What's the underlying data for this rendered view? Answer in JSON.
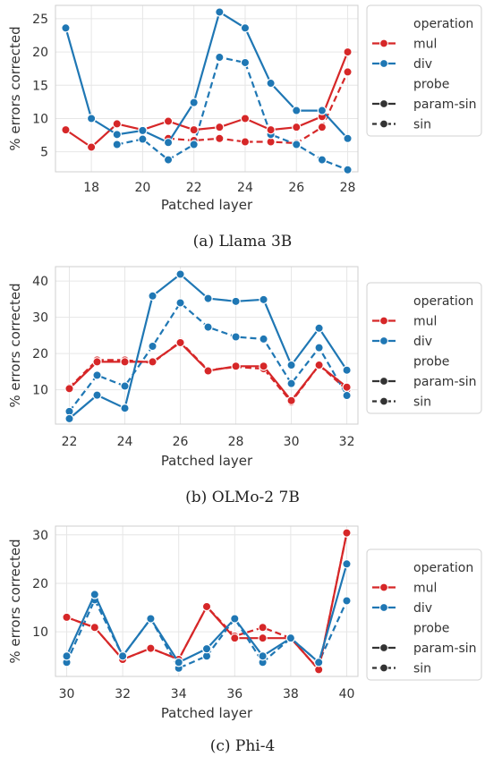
{
  "colors": {
    "mul": "#d62728",
    "div": "#1f77b4",
    "grid": "#e6e6e6",
    "frame": "#cfcfcf",
    "text": "#333333"
  },
  "legend": {
    "header_operation": "operation",
    "op_mul": "mul",
    "op_div": "div",
    "header_probe": "probe",
    "probe_param_sin": "param-sin",
    "probe_sin": "sin"
  },
  "chart_data": [
    {
      "type": "line",
      "caption": "(a) Llama 3B",
      "xlabel": "Patched layer",
      "ylabel": "% errors corrected",
      "xlim": [
        16.6,
        28.4
      ],
      "ylim": [
        2.0,
        27.0
      ],
      "xticks": [
        18,
        20,
        22,
        24,
        26,
        28
      ],
      "yticks": [
        5,
        10,
        15,
        20,
        25
      ],
      "grid": true,
      "legend_position": "outside-right",
      "series": [
        {
          "name": "mul",
          "probe": "param-sin",
          "x": [
            17,
            18,
            19,
            20,
            21,
            22,
            23,
            24,
            25,
            26,
            27,
            28
          ],
          "values": [
            8.3,
            5.7,
            9.2,
            8.3,
            9.6,
            8.3,
            8.7,
            10.0,
            8.3,
            8.7,
            10.3,
            20.0
          ]
        },
        {
          "name": "mul",
          "probe": "sin",
          "x": [
            21,
            22,
            23,
            24,
            25,
            26,
            27,
            28
          ],
          "values": [
            7.0,
            6.7,
            7.0,
            6.5,
            6.5,
            6.3,
            8.7,
            17.0
          ]
        },
        {
          "name": "div",
          "probe": "param-sin",
          "x": [
            17,
            18,
            19,
            20,
            21,
            22,
            23,
            24,
            25,
            26,
            27,
            28
          ],
          "values": [
            23.6,
            10.0,
            7.6,
            8.2,
            6.4,
            12.4,
            26.0,
            23.6,
            15.3,
            11.2,
            11.2,
            7.0
          ]
        },
        {
          "name": "div",
          "probe": "sin",
          "x": [
            19,
            20,
            21,
            22,
            23,
            24,
            25,
            26,
            27,
            28
          ],
          "values": [
            6.1,
            6.9,
            3.8,
            6.1,
            19.2,
            18.4,
            7.6,
            6.1,
            3.8,
            2.3
          ]
        }
      ]
    },
    {
      "type": "line",
      "caption": "(b) OLMo-2 7B",
      "xlabel": "Patched layer",
      "ylabel": "% errors corrected",
      "xlim": [
        21.5,
        32.4
      ],
      "ylim": [
        0.5,
        44.0
      ],
      "xticks": [
        22,
        24,
        26,
        28,
        30,
        32
      ],
      "yticks": [
        10,
        20,
        30,
        40
      ],
      "grid": true,
      "legend_position": "outside-right",
      "series": [
        {
          "name": "mul",
          "probe": "param-sin",
          "x": [
            22,
            23,
            24,
            25,
            26,
            27,
            28,
            29,
            30,
            31,
            32
          ],
          "values": [
            10.3,
            17.7,
            17.7,
            17.7,
            23.0,
            15.2,
            16.5,
            16.5,
            7.0,
            16.8,
            10.7
          ]
        },
        {
          "name": "mul",
          "probe": "sin",
          "x": [
            22,
            23,
            24,
            25,
            26,
            27,
            28,
            29,
            30,
            31,
            32
          ],
          "values": [
            10.6,
            18.2,
            18.2,
            17.4,
            23.3,
            15.4,
            16.3,
            15.8,
            6.6,
            16.8,
            10.0
          ]
        },
        {
          "name": "div",
          "probe": "param-sin",
          "x": [
            22,
            23,
            24,
            25,
            26,
            27,
            28,
            29,
            30,
            31,
            32
          ],
          "values": [
            2.0,
            8.5,
            4.9,
            35.9,
            41.9,
            35.2,
            34.4,
            34.9,
            16.8,
            27.0,
            15.4
          ]
        },
        {
          "name": "div",
          "probe": "sin",
          "x": [
            22,
            23,
            24,
            25,
            26,
            27,
            28,
            29,
            30,
            31,
            32
          ],
          "values": [
            4.0,
            14.0,
            11.0,
            22.0,
            34.0,
            27.3,
            24.6,
            24.0,
            11.7,
            21.6,
            8.4
          ]
        }
      ]
    },
    {
      "type": "line",
      "caption": "(c) Phi-4",
      "xlabel": "Patched layer",
      "ylabel": "% errors corrected",
      "xlim": [
        29.6,
        40.4
      ],
      "ylim": [
        0.8,
        31.8
      ],
      "xticks": [
        30,
        32,
        34,
        36,
        38,
        40
      ],
      "yticks": [
        10,
        20,
        30
      ],
      "grid": true,
      "legend_position": "outside-right",
      "series": [
        {
          "name": "mul",
          "probe": "param-sin",
          "x": [
            30,
            31,
            32,
            33,
            34,
            35,
            36,
            37,
            38,
            39,
            40
          ],
          "values": [
            13.0,
            10.9,
            4.3,
            6.6,
            4.3,
            15.2,
            8.7,
            8.7,
            8.7,
            2.2,
            30.4
          ]
        },
        {
          "name": "mul",
          "probe": "sin",
          "x": [
            30,
            31,
            32,
            33,
            34,
            35,
            36,
            37,
            38,
            39,
            40
          ],
          "values": [
            13.0,
            10.9,
            4.3,
            6.6,
            4.3,
            15.2,
            9.1,
            10.9,
            8.7,
            2.2,
            30.4
          ]
        },
        {
          "name": "div",
          "probe": "param-sin",
          "x": [
            30,
            31,
            32,
            33,
            34,
            35,
            36,
            37,
            38,
            39,
            40
          ],
          "values": [
            5.0,
            17.7,
            5.0,
            12.7,
            3.7,
            6.5,
            12.7,
            5.0,
            8.7,
            3.7,
            24.0
          ]
        },
        {
          "name": "div",
          "probe": "sin",
          "x": [
            30,
            31,
            32,
            33,
            34,
            35,
            36,
            37,
            38,
            39,
            40
          ],
          "values": [
            3.7,
            16.6,
            5.0,
            12.7,
            2.5,
            5.0,
            12.7,
            3.7,
            8.7,
            3.7,
            16.4
          ]
        }
      ]
    }
  ]
}
